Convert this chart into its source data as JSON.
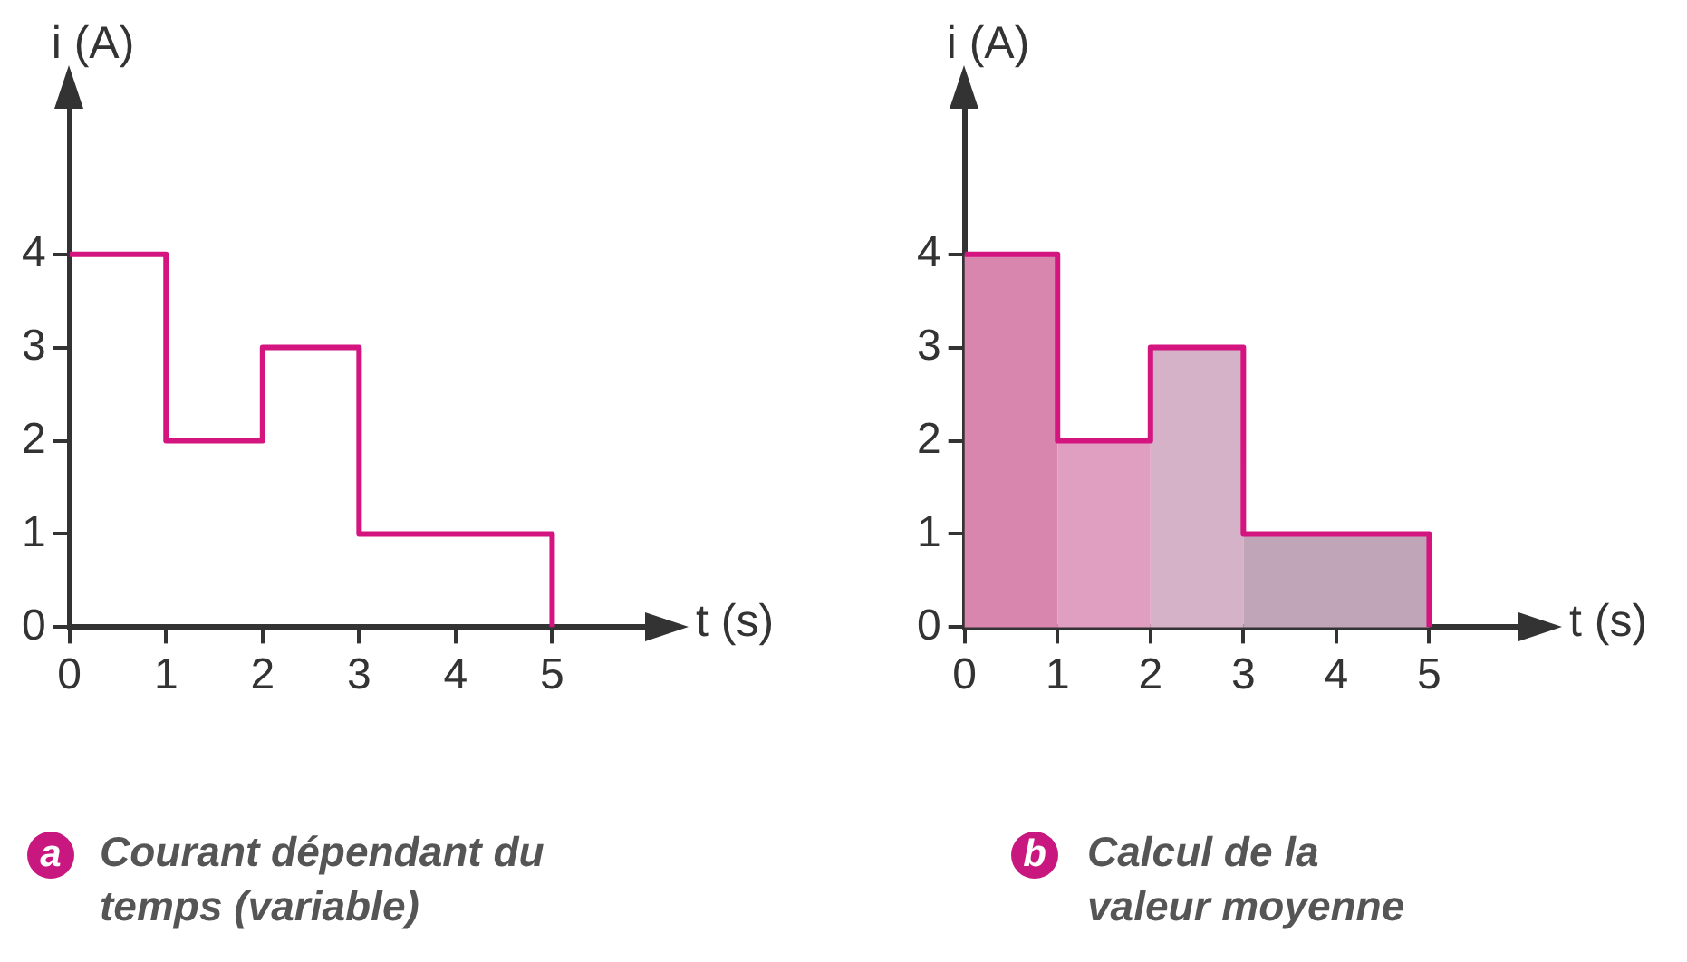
{
  "chart_data": [
    {
      "type": "step",
      "title": "Courant dépendant du temps (variable)",
      "annotations": [
        "a"
      ],
      "xlabel": "t (s)",
      "ylabel": "i (A)",
      "x": [
        0,
        1,
        2,
        3,
        5
      ],
      "values": [
        4,
        2,
        3,
        1,
        0
      ],
      "color": "#d4147f",
      "xlim": [
        0,
        6
      ],
      "ylim": [
        0,
        5.6
      ],
      "xticks": [
        0,
        1,
        2,
        3,
        4,
        5
      ],
      "yticks": [
        0,
        1,
        2,
        3,
        4
      ],
      "grid": false,
      "legend": false
    },
    {
      "type": "histogram",
      "title": "Calcul de la valeur moyenne",
      "annotations": [
        "b"
      ],
      "xlabel": "t (s)",
      "ylabel": "i (A)",
      "bins": [
        0,
        1,
        2,
        3,
        5
      ],
      "series": [
        {
          "type": "histogram",
          "values": [
            4,
            2,
            3,
            1
          ],
          "colors": [
            "#d886ae",
            "#e09ec0",
            "#d5b2c8",
            "#c0a5b8"
          ]
        },
        {
          "type": "step",
          "x": [
            0,
            1,
            2,
            3,
            5
          ],
          "values": [
            4,
            2,
            3,
            1,
            0
          ],
          "color": "#d4147f"
        }
      ],
      "xlim": [
        0,
        6
      ],
      "ylim": [
        0,
        5.6
      ],
      "xticks": [
        0,
        1,
        2,
        3,
        4,
        5
      ],
      "yticks": [
        0,
        1,
        2,
        3,
        4
      ],
      "grid": false,
      "legend": false
    }
  ]
}
